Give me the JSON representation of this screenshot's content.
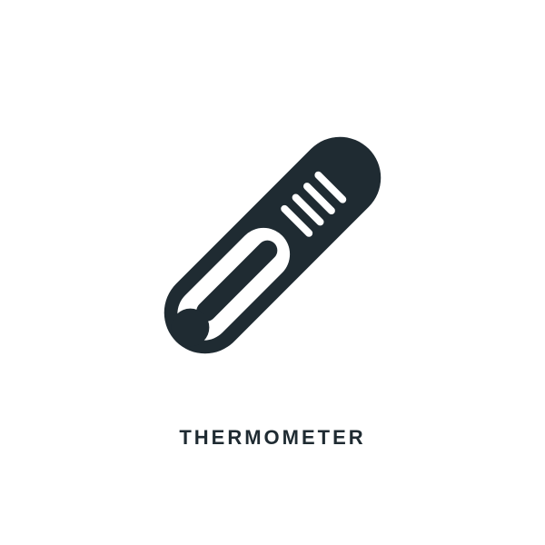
{
  "icon": {
    "name": "thermometer-icon",
    "label": "THERMOMETER",
    "label_fontsize": 22,
    "label_letter_spacing": 3,
    "color": "#1f2b32",
    "background_color": "#ffffff",
    "rotation_deg": 45,
    "body_length": 300,
    "body_width": 90,
    "inner_tube_width": 22,
    "tick_count": 4,
    "tick_length": 46,
    "tick_width": 8
  }
}
